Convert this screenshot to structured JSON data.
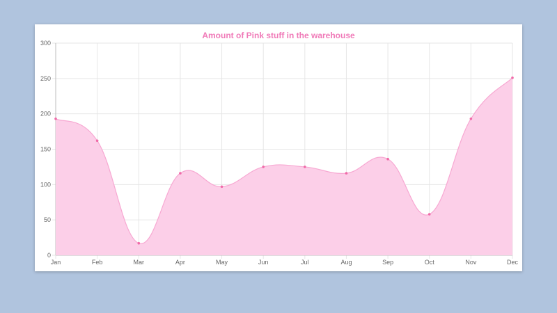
{
  "chart_data": {
    "type": "area",
    "title": "Amount of Pink stuff in the warehouse",
    "categories": [
      "Jan",
      "Feb",
      "Mar",
      "Apr",
      "May",
      "Jun",
      "Jul",
      "Aug",
      "Sep",
      "Oct",
      "Nov",
      "Dec"
    ],
    "series": [
      {
        "values": [
          193,
          162,
          17,
          116,
          97,
          125,
          125,
          116,
          136,
          58,
          193,
          251
        ]
      }
    ],
    "ylim": [
      0,
      300
    ],
    "yticks": [
      0,
      50,
      100,
      150,
      200,
      250,
      300
    ],
    "grid": true,
    "legend": "none",
    "colors": {
      "title": "#f07ab8",
      "area_fill": "#fccfe8",
      "line": "#f7a8d2",
      "point": "#f06aa8",
      "grid": "#e6e6e6",
      "axis": "#bdbdbd"
    }
  }
}
